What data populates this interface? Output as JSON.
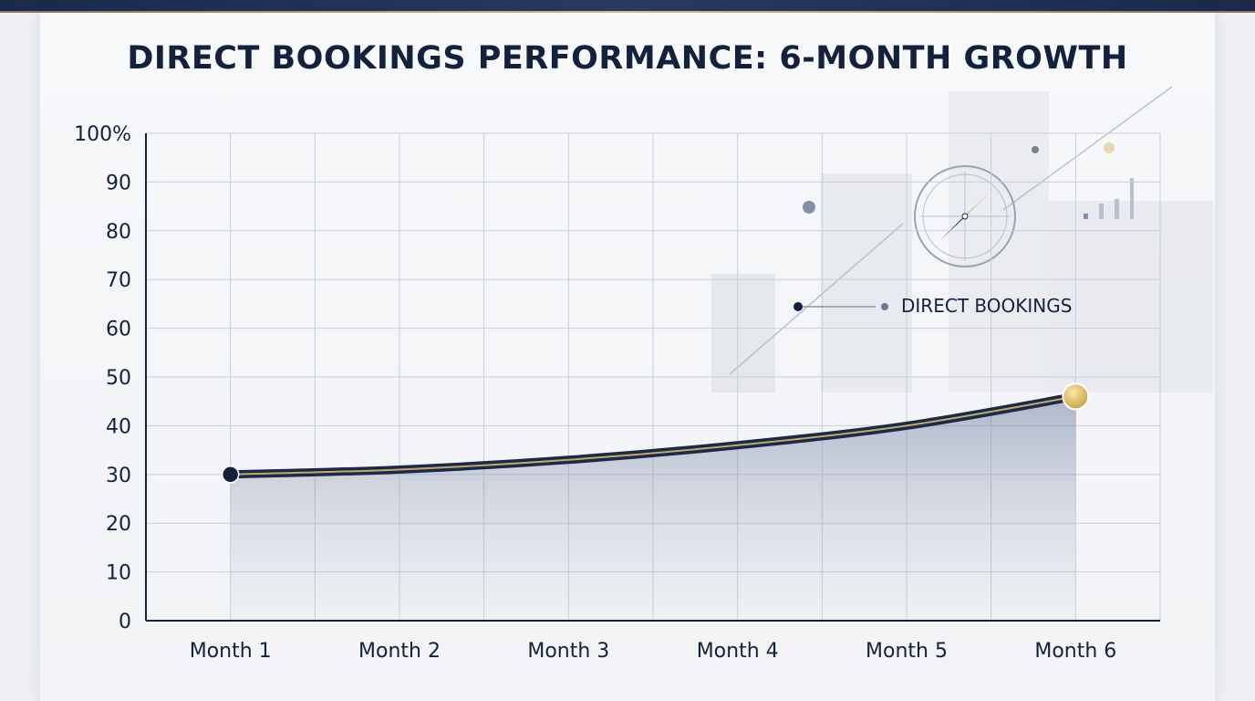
{
  "chart_data": {
    "type": "line",
    "title": "DIRECT BOOKINGS PERFORMANCE: 6-MONTH GROWTH",
    "categories": [
      "Month 1",
      "Month 2",
      "Month 3",
      "Month 4",
      "Month 5",
      "Month 6"
    ],
    "series": [
      {
        "name": "DIRECT BOOKINGS",
        "values": [
          30,
          31,
          33,
          36,
          40,
          46
        ]
      }
    ],
    "y_ticks": [
      "0",
      "10",
      "20",
      "30",
      "40",
      "50",
      "60",
      "70",
      "80",
      "90",
      "100%"
    ],
    "ylim": [
      0,
      100
    ],
    "xlabel": "",
    "ylabel": "",
    "grid": true,
    "legend_position": "top-right",
    "colors": {
      "line": "#1b2a4a",
      "highlight": "#d4b868",
      "start_marker": "#14213d",
      "end_marker": "#e0bf5a",
      "grid": "#c9ced8",
      "axis": "#14213d"
    }
  }
}
